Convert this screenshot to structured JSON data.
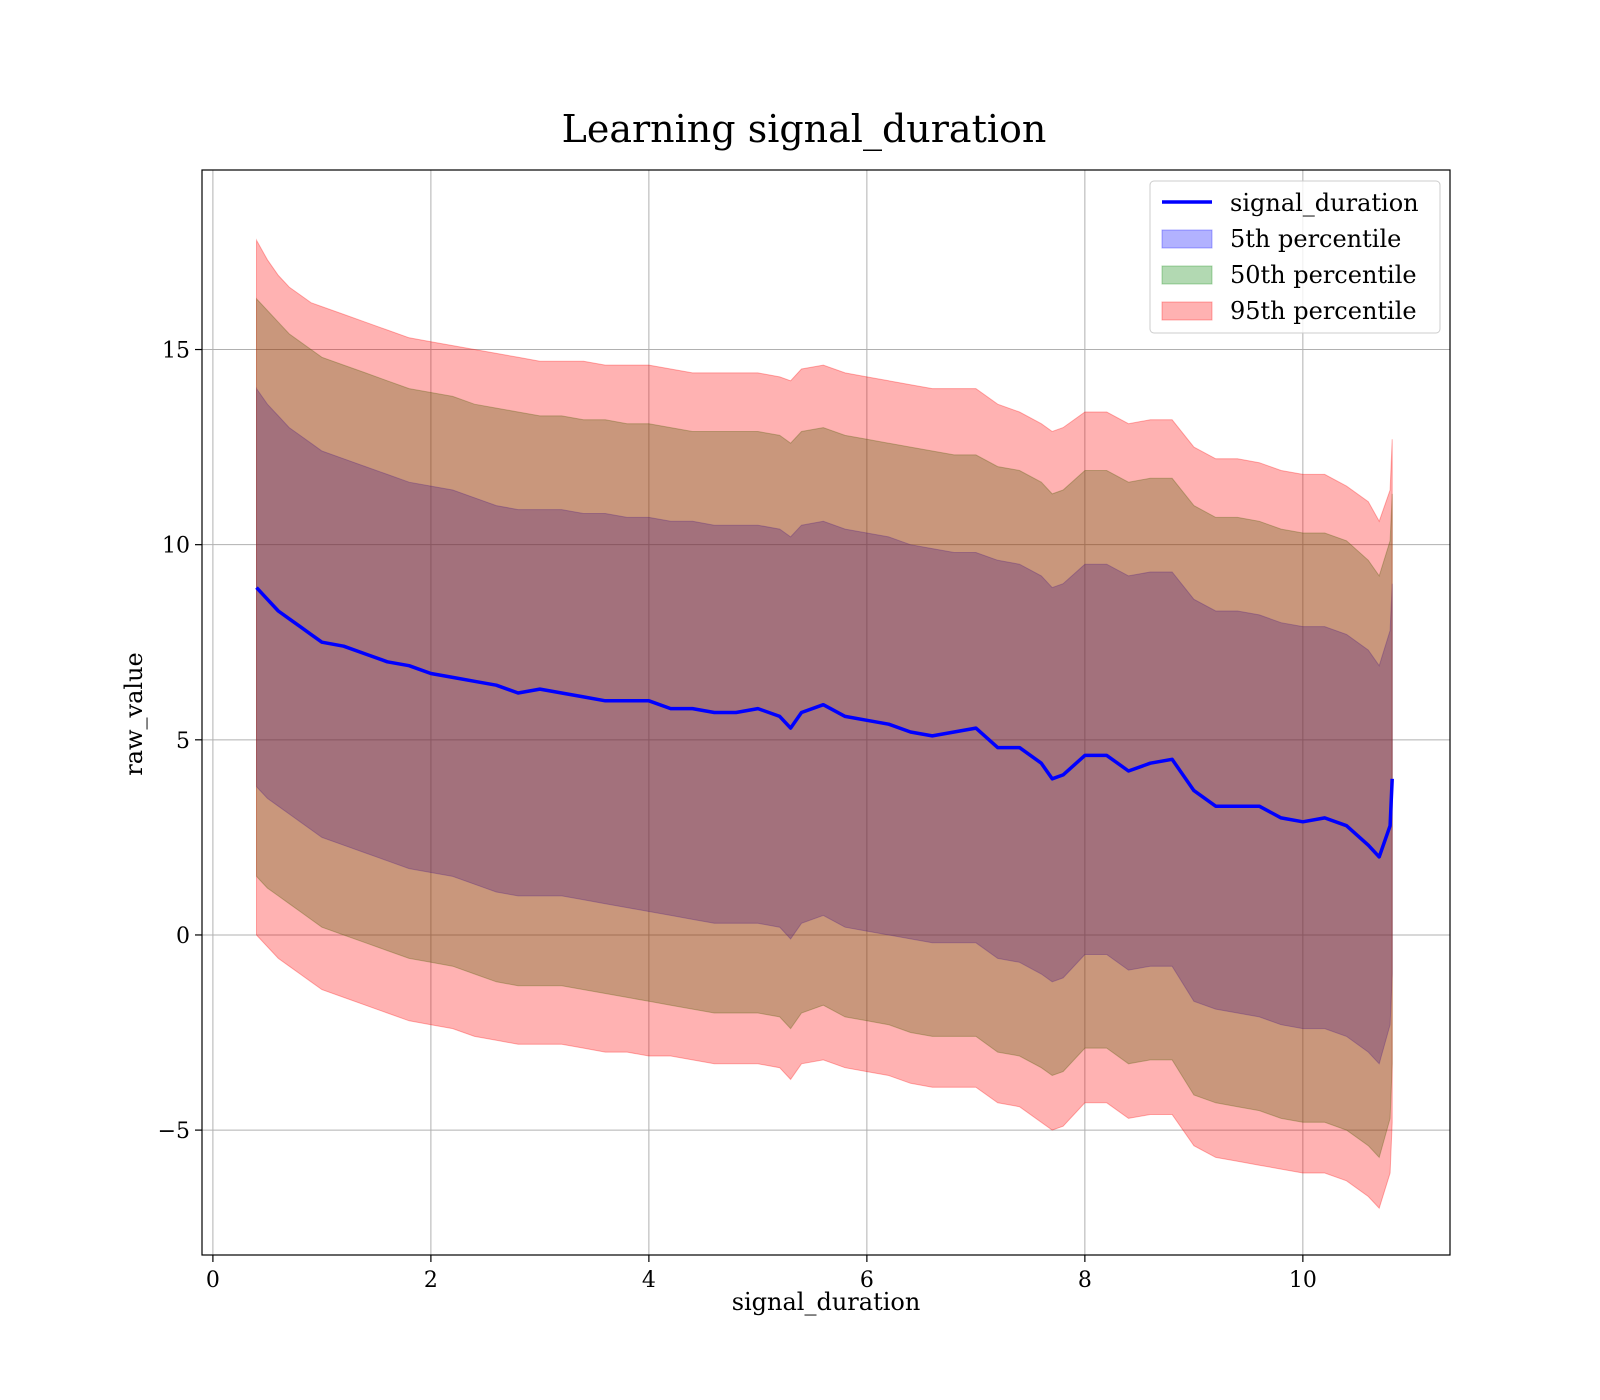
{
  "chart_data": {
    "type": "line",
    "title": "Learning signal_duration",
    "xlabel": "signal_duration",
    "ylabel": "raw_value",
    "xlim": [
      -0.1,
      11.35
    ],
    "ylim": [
      -8.2,
      19.6
    ],
    "xticks": [
      0,
      2,
      4,
      6,
      8,
      10
    ],
    "yticks": [
      -5,
      0,
      5,
      10,
      15
    ],
    "ytick_labels": [
      "−5",
      "0",
      "5",
      "10",
      "15"
    ],
    "grid": true,
    "legend_position": "top-right",
    "colors": {
      "line": "#0000ff",
      "band_5th": "#0000ff",
      "band_50th": "#008000",
      "band_95th": "#ff0000",
      "grid": "#b0b0b0"
    },
    "x": [
      0.4,
      0.5,
      0.6,
      0.7,
      0.8,
      0.9,
      1.0,
      1.2,
      1.4,
      1.6,
      1.8,
      2.0,
      2.2,
      2.4,
      2.6,
      2.8,
      3.0,
      3.2,
      3.4,
      3.6,
      3.8,
      4.0,
      4.2,
      4.4,
      4.6,
      4.8,
      5.0,
      5.2,
      5.3,
      5.4,
      5.6,
      5.8,
      6.0,
      6.2,
      6.4,
      6.6,
      6.8,
      7.0,
      7.2,
      7.4,
      7.6,
      7.7,
      7.8,
      8.0,
      8.2,
      8.4,
      8.6,
      8.8,
      9.0,
      9.2,
      9.4,
      9.6,
      9.8,
      10.0,
      10.2,
      10.4,
      10.6,
      10.7,
      10.8,
      10.82
    ],
    "series": [
      {
        "name": "signal_duration",
        "kind": "line",
        "y": [
          8.9,
          8.6,
          8.3,
          8.1,
          7.9,
          7.7,
          7.5,
          7.4,
          7.2,
          7.0,
          6.9,
          6.7,
          6.6,
          6.5,
          6.4,
          6.2,
          6.3,
          6.2,
          6.1,
          6.0,
          6.0,
          6.0,
          5.8,
          5.8,
          5.7,
          5.7,
          5.8,
          5.6,
          5.3,
          5.7,
          5.9,
          5.6,
          5.5,
          5.4,
          5.2,
          5.1,
          5.2,
          5.3,
          4.8,
          4.8,
          4.4,
          4.0,
          4.1,
          4.6,
          4.6,
          4.2,
          4.4,
          4.5,
          3.7,
          3.3,
          3.3,
          3.3,
          3.0,
          2.9,
          3.0,
          2.8,
          2.3,
          2.0,
          2.8,
          4.0
        ]
      },
      {
        "name": "5th percentile",
        "kind": "band",
        "upper": [
          14.0,
          13.6,
          13.3,
          13.0,
          12.8,
          12.6,
          12.4,
          12.2,
          12.0,
          11.8,
          11.6,
          11.5,
          11.4,
          11.2,
          11.0,
          10.9,
          10.9,
          10.9,
          10.8,
          10.8,
          10.7,
          10.7,
          10.6,
          10.6,
          10.5,
          10.5,
          10.5,
          10.4,
          10.2,
          10.5,
          10.6,
          10.4,
          10.3,
          10.2,
          10.0,
          9.9,
          9.8,
          9.8,
          9.6,
          9.5,
          9.2,
          8.9,
          9.0,
          9.5,
          9.5,
          9.2,
          9.3,
          9.3,
          8.6,
          8.3,
          8.3,
          8.2,
          8.0,
          7.9,
          7.9,
          7.7,
          7.3,
          6.9,
          7.8,
          9.0
        ],
        "lower": [
          3.8,
          3.5,
          3.3,
          3.1,
          2.9,
          2.7,
          2.5,
          2.3,
          2.1,
          1.9,
          1.7,
          1.6,
          1.5,
          1.3,
          1.1,
          1.0,
          1.0,
          1.0,
          0.9,
          0.8,
          0.7,
          0.6,
          0.5,
          0.4,
          0.3,
          0.3,
          0.3,
          0.2,
          -0.1,
          0.3,
          0.5,
          0.2,
          0.1,
          0.0,
          -0.1,
          -0.2,
          -0.2,
          -0.2,
          -0.6,
          -0.7,
          -1.0,
          -1.2,
          -1.1,
          -0.5,
          -0.5,
          -0.9,
          -0.8,
          -0.8,
          -1.7,
          -1.9,
          -2.0,
          -2.1,
          -2.3,
          -2.4,
          -2.4,
          -2.6,
          -3.0,
          -3.3,
          -2.3,
          -1.0
        ]
      },
      {
        "name": "50th percentile",
        "kind": "band",
        "upper": [
          16.3,
          16.0,
          15.7,
          15.4,
          15.2,
          15.0,
          14.8,
          14.6,
          14.4,
          14.2,
          14.0,
          13.9,
          13.8,
          13.6,
          13.5,
          13.4,
          13.3,
          13.3,
          13.2,
          13.2,
          13.1,
          13.1,
          13.0,
          12.9,
          12.9,
          12.9,
          12.9,
          12.8,
          12.6,
          12.9,
          13.0,
          12.8,
          12.7,
          12.6,
          12.5,
          12.4,
          12.3,
          12.3,
          12.0,
          11.9,
          11.6,
          11.3,
          11.4,
          11.9,
          11.9,
          11.6,
          11.7,
          11.7,
          11.0,
          10.7,
          10.7,
          10.6,
          10.4,
          10.3,
          10.3,
          10.1,
          9.6,
          9.2,
          10.1,
          11.3
        ],
        "lower": [
          1.5,
          1.2,
          1.0,
          0.8,
          0.6,
          0.4,
          0.2,
          0.0,
          -0.2,
          -0.4,
          -0.6,
          -0.7,
          -0.8,
          -1.0,
          -1.2,
          -1.3,
          -1.3,
          -1.3,
          -1.4,
          -1.5,
          -1.6,
          -1.7,
          -1.8,
          -1.9,
          -2.0,
          -2.0,
          -2.0,
          -2.1,
          -2.4,
          -2.0,
          -1.8,
          -2.1,
          -2.2,
          -2.3,
          -2.5,
          -2.6,
          -2.6,
          -2.6,
          -3.0,
          -3.1,
          -3.4,
          -3.6,
          -3.5,
          -2.9,
          -2.9,
          -3.3,
          -3.2,
          -3.2,
          -4.1,
          -4.3,
          -4.4,
          -4.5,
          -4.7,
          -4.8,
          -4.8,
          -5.0,
          -5.4,
          -5.7,
          -4.7,
          -3.3
        ]
      },
      {
        "name": "95th percentile",
        "kind": "band",
        "upper": [
          17.8,
          17.3,
          16.9,
          16.6,
          16.4,
          16.2,
          16.1,
          15.9,
          15.7,
          15.5,
          15.3,
          15.2,
          15.1,
          15.0,
          14.9,
          14.8,
          14.7,
          14.7,
          14.7,
          14.6,
          14.6,
          14.6,
          14.5,
          14.4,
          14.4,
          14.4,
          14.4,
          14.3,
          14.2,
          14.5,
          14.6,
          14.4,
          14.3,
          14.2,
          14.1,
          14.0,
          14.0,
          14.0,
          13.6,
          13.4,
          13.1,
          12.9,
          13.0,
          13.4,
          13.4,
          13.1,
          13.2,
          13.2,
          12.5,
          12.2,
          12.2,
          12.1,
          11.9,
          11.8,
          11.8,
          11.5,
          11.1,
          10.6,
          11.4,
          12.7
        ],
        "lower": [
          0.0,
          -0.3,
          -0.6,
          -0.8,
          -1.0,
          -1.2,
          -1.4,
          -1.6,
          -1.8,
          -2.0,
          -2.2,
          -2.3,
          -2.4,
          -2.6,
          -2.7,
          -2.8,
          -2.8,
          -2.8,
          -2.9,
          -3.0,
          -3.0,
          -3.1,
          -3.1,
          -3.2,
          -3.3,
          -3.3,
          -3.3,
          -3.4,
          -3.7,
          -3.3,
          -3.2,
          -3.4,
          -3.5,
          -3.6,
          -3.8,
          -3.9,
          -3.9,
          -3.9,
          -4.3,
          -4.4,
          -4.8,
          -5.0,
          -4.9,
          -4.3,
          -4.3,
          -4.7,
          -4.6,
          -4.6,
          -5.4,
          -5.7,
          -5.8,
          -5.9,
          -6.0,
          -6.1,
          -6.1,
          -6.3,
          -6.7,
          -7.0,
          -6.1,
          -4.8
        ]
      }
    ]
  }
}
